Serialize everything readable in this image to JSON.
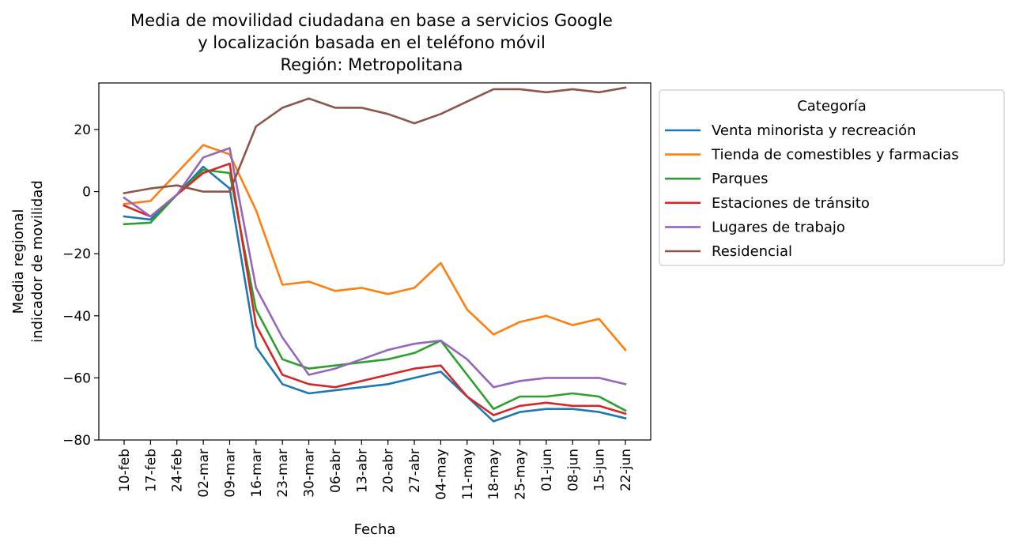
{
  "chart_data": {
    "type": "line",
    "title": [
      "Media de movilidad ciudadana en base a servicios Google",
      "y localización basada en el teléfono móvil",
      "Región: Metropolitana"
    ],
    "xlabel": "Fecha",
    "ylabel": [
      "Media regional",
      "indicador de movilidad"
    ],
    "ylim": [
      -80,
      35
    ],
    "yticks": [
      -80,
      -60,
      -40,
      -20,
      0,
      20
    ],
    "x": [
      "10-feb",
      "17-feb",
      "24-feb",
      "02-mar",
      "09-mar",
      "16-mar",
      "23-mar",
      "30-mar",
      "06-abr",
      "13-abr",
      "20-abr",
      "27-abr",
      "04-may",
      "11-may",
      "18-may",
      "25-may",
      "01-jun",
      "08-jun",
      "15-jun",
      "22-jun"
    ],
    "legend_title": "Categoría",
    "legend_position": "outside-right-top",
    "grid": false,
    "series": [
      {
        "name": "Venta minorista y recreación",
        "color": "#1f77b4",
        "values": [
          -8,
          -9,
          -1,
          8,
          1,
          -50,
          -62,
          -65,
          -64,
          -63,
          -62,
          -60,
          -58,
          -66,
          -74,
          -71,
          -70,
          -70,
          -71,
          -73
        ]
      },
      {
        "name": "Tienda de comestibles y farmacias",
        "color": "#ff7f0e",
        "values": [
          -4,
          -3,
          6,
          15,
          12,
          -6,
          -30,
          -29,
          -32,
          -31,
          -33,
          -31,
          -23,
          -38,
          -46,
          -42,
          -40,
          -43,
          -41,
          -51
        ]
      },
      {
        "name": "Parques",
        "color": "#2ca02c",
        "values": [
          -10.5,
          -10,
          -1,
          7,
          6,
          -38,
          -54,
          -57,
          -56,
          -55,
          -54,
          -52,
          -48,
          -59,
          -70,
          -66,
          -66,
          -65,
          -66,
          -70.5
        ]
      },
      {
        "name": "Estaciones de tránsito",
        "color": "#d62728",
        "values": [
          -4.5,
          -8,
          -1,
          6,
          9,
          -43,
          -59,
          -62,
          -63,
          -61,
          -59,
          -57,
          -56,
          -66,
          -72,
          -69,
          -68,
          -69,
          -69,
          -71.5
        ]
      },
      {
        "name": "Lugares de trabajo",
        "color": "#9467bd",
        "values": [
          -2,
          -8,
          -1,
          11,
          14,
          -31,
          -47,
          -59,
          -57,
          -54,
          -51,
          -49,
          -48,
          -54,
          -63,
          -61,
          -60,
          -60,
          -60,
          -62
        ]
      },
      {
        "name": "Residencial",
        "color": "#8c564b",
        "values": [
          -0.5,
          1,
          2,
          0,
          0,
          21,
          27,
          30,
          27,
          27,
          25,
          22,
          25,
          29,
          33,
          33,
          32,
          33,
          32,
          33.5
        ]
      }
    ]
  }
}
